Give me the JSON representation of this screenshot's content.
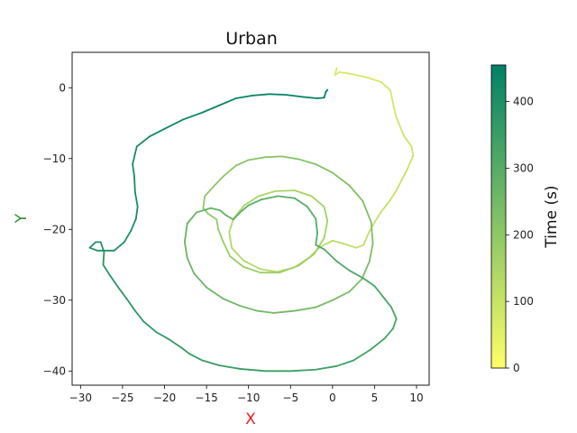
{
  "chart_data": {
    "type": "line",
    "title": "Urban",
    "xlabel": "X",
    "ylabel": "Y",
    "xlabel_color": "#e8201c",
    "ylabel_color": "#2e8b2e",
    "xlim": [
      -31,
      11.5
    ],
    "ylim": [
      -42,
      5
    ],
    "xticks": [
      -30,
      -25,
      -20,
      -15,
      -10,
      -5,
      0,
      5,
      10
    ],
    "yticks": [
      0,
      -10,
      -20,
      -30,
      -40
    ],
    "grid": false,
    "colorbar": {
      "label": "Time (s)",
      "range": [
        0,
        455
      ],
      "ticks": [
        0,
        100,
        200,
        300,
        400
      ],
      "colormap": "summer_r",
      "color_low": "#ffff66",
      "color_high": "#008066"
    },
    "series": [
      {
        "points": [
          [
            0.5,
            2.8
          ],
          [
            0.3,
            1.8
          ],
          [
            0.8,
            2.2
          ],
          [
            2.0,
            2.0
          ],
          [
            4.0,
            1.5
          ],
          [
            5.8,
            0.8
          ],
          [
            6.9,
            -0.4
          ],
          [
            7.2,
            -2.2
          ],
          [
            7.6,
            -4.2
          ],
          [
            8.5,
            -6.8
          ],
          [
            9.4,
            -8.3
          ],
          [
            9.6,
            -9.6
          ],
          [
            8.9,
            -11.5
          ],
          [
            7.6,
            -14.5
          ],
          [
            6.6,
            -16.3
          ],
          [
            5.8,
            -17.5
          ],
          [
            5.0,
            -19.0
          ],
          [
            4.3,
            -20.5
          ],
          [
            3.7,
            -22.2
          ],
          [
            2.8,
            -22.6
          ],
          [
            1.3,
            -22.0
          ],
          [
            0.0,
            -21.6
          ],
          [
            -1.5,
            -22.5
          ],
          [
            -2.8,
            -24.0
          ],
          [
            -4.6,
            -25.4
          ],
          [
            -6.6,
            -26.0
          ],
          [
            -8.6,
            -25.6
          ],
          [
            -10.6,
            -24.4
          ],
          [
            -12.0,
            -22.6
          ],
          [
            -12.3,
            -20.4
          ],
          [
            -11.8,
            -18.5
          ],
          [
            -10.5,
            -16.6
          ],
          [
            -8.8,
            -15.3
          ],
          [
            -6.8,
            -14.6
          ],
          [
            -4.5,
            -14.5
          ],
          [
            -2.5,
            -15.3
          ],
          [
            -1.0,
            -16.8
          ],
          [
            -0.6,
            -18.8
          ],
          [
            -1.0,
            -21.2
          ],
          [
            -2.2,
            -23.5
          ],
          [
            -4.0,
            -25.1
          ],
          [
            -6.3,
            -26.1
          ],
          [
            -8.6,
            -26.1
          ],
          [
            -10.6,
            -25.3
          ],
          [
            -12.2,
            -23.8
          ],
          [
            -13.0,
            -21.8
          ],
          [
            -13.6,
            -20.0
          ],
          [
            -13.8,
            -18.6
          ],
          [
            -14.8,
            -17.8
          ],
          [
            -15.4,
            -17.0
          ],
          [
            -15.2,
            -15.3
          ],
          [
            -14.2,
            -14.0
          ],
          [
            -13.0,
            -12.5
          ],
          [
            -11.5,
            -11.0
          ],
          [
            -10.0,
            -10.2
          ],
          [
            -8.0,
            -9.8
          ],
          [
            -6.0,
            -9.7
          ],
          [
            -4.0,
            -10.1
          ],
          [
            -2.0,
            -10.8
          ],
          [
            0.0,
            -12.0
          ],
          [
            2.0,
            -13.8
          ],
          [
            3.6,
            -16.0
          ],
          [
            4.6,
            -19.0
          ],
          [
            4.8,
            -22.0
          ],
          [
            4.4,
            -24.5
          ],
          [
            3.5,
            -27.0
          ],
          [
            2.0,
            -28.8
          ],
          [
            0.0,
            -30.0
          ],
          [
            -2.0,
            -31.0
          ],
          [
            -4.5,
            -31.5
          ],
          [
            -7.0,
            -31.8
          ],
          [
            -9.0,
            -31.5
          ],
          [
            -11.0,
            -30.8
          ],
          [
            -13.0,
            -29.8
          ],
          [
            -15.0,
            -28.2
          ],
          [
            -16.5,
            -26.2
          ],
          [
            -17.3,
            -24.0
          ],
          [
            -17.6,
            -21.8
          ],
          [
            -17.3,
            -19.2
          ],
          [
            -16.2,
            -17.6
          ],
          [
            -14.5,
            -17.0
          ],
          [
            -13.4,
            -17.3
          ],
          [
            -12.7,
            -18.0
          ],
          [
            -11.8,
            -18.6
          ],
          [
            -11.0,
            -17.6
          ],
          [
            -10.0,
            -16.6
          ],
          [
            -8.5,
            -15.8
          ],
          [
            -6.5,
            -15.3
          ],
          [
            -4.5,
            -15.6
          ],
          [
            -3.0,
            -16.8
          ],
          [
            -2.0,
            -18.5
          ],
          [
            -1.8,
            -20.5
          ],
          [
            -2.0,
            -22.2
          ],
          [
            -1.0,
            -22.8
          ],
          [
            0.5,
            -24.5
          ],
          [
            2.0,
            -25.8
          ],
          [
            3.8,
            -27.0
          ],
          [
            5.0,
            -28.0
          ],
          [
            6.0,
            -29.5
          ],
          [
            7.0,
            -31.0
          ],
          [
            7.6,
            -32.6
          ],
          [
            7.2,
            -34.0
          ],
          [
            6.2,
            -35.4
          ],
          [
            4.5,
            -37.0
          ],
          [
            2.5,
            -38.5
          ],
          [
            0.5,
            -39.3
          ],
          [
            -2.0,
            -39.8
          ],
          [
            -5.0,
            -40.0
          ],
          [
            -8.0,
            -40.0
          ],
          [
            -11.0,
            -39.7
          ],
          [
            -13.5,
            -39.2
          ],
          [
            -15.5,
            -38.5
          ],
          [
            -17.0,
            -37.6
          ],
          [
            -18.0,
            -36.7
          ],
          [
            -19.5,
            -35.5
          ],
          [
            -21.0,
            -34.5
          ],
          [
            -22.5,
            -33.0
          ],
          [
            -23.5,
            -31.5
          ],
          [
            -24.5,
            -29.8
          ],
          [
            -25.5,
            -28.2
          ],
          [
            -26.5,
            -26.5
          ],
          [
            -27.3,
            -25.0
          ],
          [
            -27.2,
            -23.2
          ],
          [
            -27.6,
            -21.8
          ],
          [
            -28.2,
            -21.8
          ],
          [
            -28.9,
            -22.6
          ],
          [
            -28.0,
            -23.0
          ],
          [
            -26.0,
            -23.0
          ],
          [
            -24.8,
            -21.8
          ],
          [
            -24.0,
            -20.2
          ],
          [
            -23.4,
            -18.5
          ],
          [
            -23.2,
            -16.8
          ],
          [
            -23.5,
            -14.8
          ],
          [
            -23.6,
            -12.5
          ],
          [
            -23.8,
            -10.8
          ],
          [
            -23.3,
            -8.3
          ],
          [
            -21.8,
            -6.9
          ],
          [
            -20.0,
            -5.8
          ],
          [
            -17.8,
            -4.5
          ],
          [
            -15.5,
            -3.5
          ],
          [
            -13.5,
            -2.5
          ],
          [
            -11.5,
            -1.5
          ],
          [
            -9.5,
            -1.1
          ],
          [
            -7.5,
            -0.9
          ],
          [
            -5.5,
            -1.0
          ],
          [
            -3.5,
            -1.3
          ],
          [
            -1.8,
            -1.5
          ],
          [
            -1.0,
            -1.4
          ],
          [
            -0.8,
            -0.6
          ],
          [
            -0.6,
            -0.3
          ]
        ]
      }
    ]
  }
}
